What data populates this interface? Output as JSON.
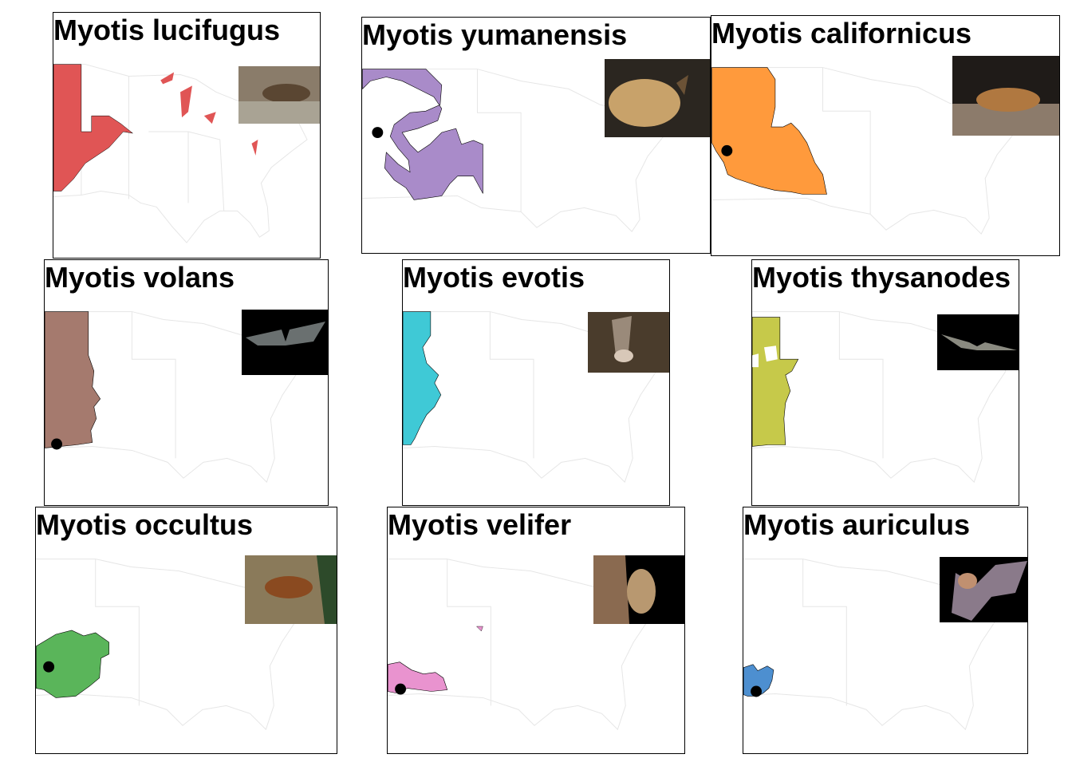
{
  "panels": [
    {
      "title": "Myotis lucifugus",
      "range_color": "#e05555",
      "photo_icon": "bat-photo-icon"
    },
    {
      "title": "Myotis yumanensis",
      "range_color": "#a98bc9",
      "photo_icon": "bat-photo-icon"
    },
    {
      "title": "Myotis californicus",
      "range_color": "#ff9a3c",
      "photo_icon": "bat-photo-icon"
    },
    {
      "title": "Myotis volans",
      "range_color": "#a57a6e",
      "photo_icon": "bat-photo-icon"
    },
    {
      "title": "Myotis evotis",
      "range_color": "#3fc9d6",
      "photo_icon": "bat-photo-icon"
    },
    {
      "title": "Myotis thysanodes",
      "range_color": "#c6c94a",
      "photo_icon": "bat-photo-icon"
    },
    {
      "title": "Myotis occultus",
      "range_color": "#5ab55a",
      "photo_icon": "bat-photo-icon"
    },
    {
      "title": "Myotis velifer",
      "range_color": "#e993cf",
      "photo_icon": "bat-photo-icon"
    },
    {
      "title": "Myotis auriculus",
      "range_color": "#4d8fd0",
      "photo_icon": "bat-photo-icon"
    }
  ],
  "colors": {
    "outline": "#e6e6e6",
    "border": "#000000",
    "point": "#000000"
  }
}
